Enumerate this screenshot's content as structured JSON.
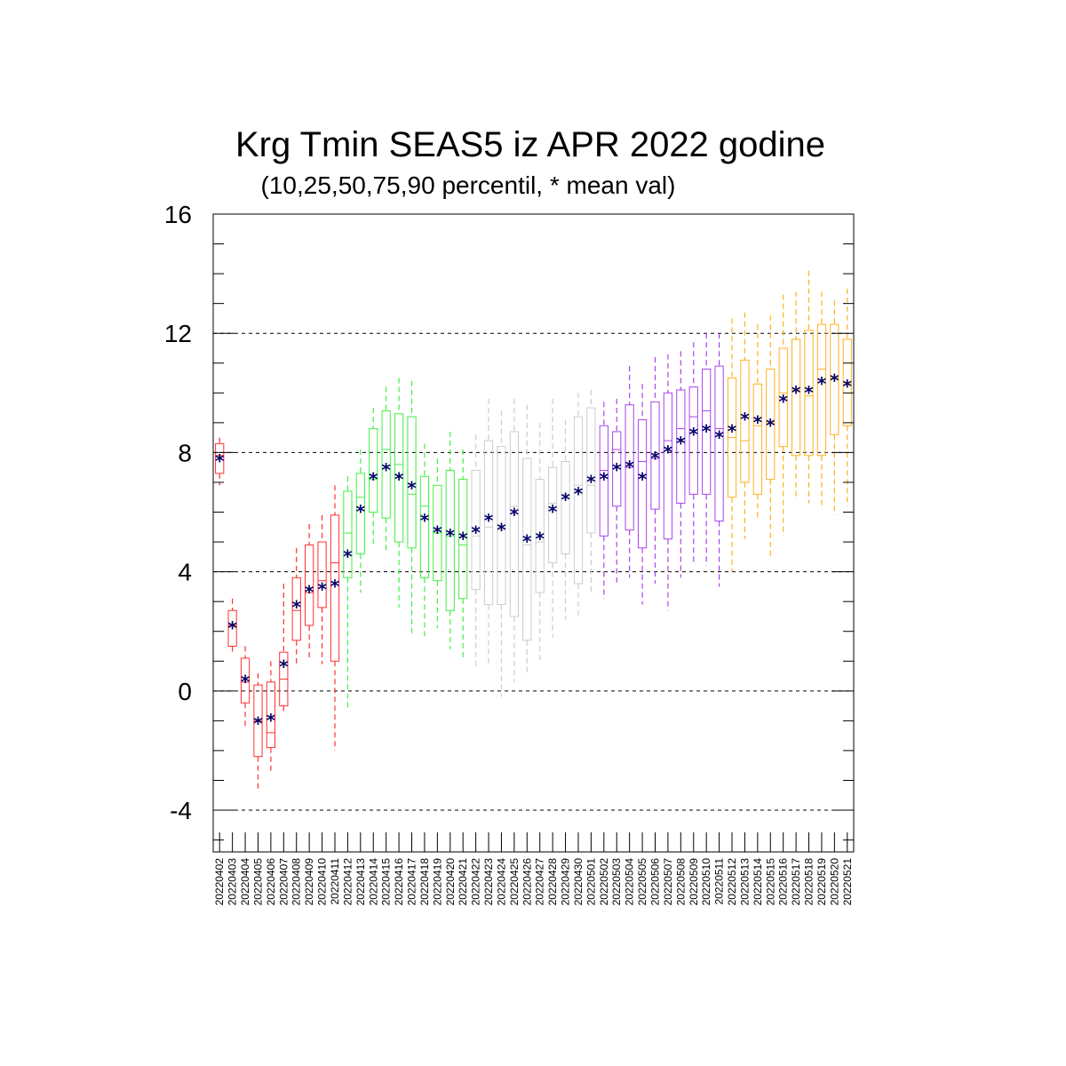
{
  "chart_data": {
    "type": "box",
    "title": "Krg Tmin SEAS5 iz APR 2022 godine",
    "subtitle": "(10,25,50,75,90 percentil, * mean val)",
    "xlabel": "",
    "ylabel": "",
    "ylim": [
      -5.4,
      16
    ],
    "yticks": [
      "16",
      "12",
      "8",
      "4",
      "0",
      "-4"
    ],
    "grid": "dashed horizontal at major ticks",
    "marker": "*",
    "marker_color": "#000066",
    "colors": {
      "red": "#ff3030",
      "green": "#44ee44",
      "gray": "#cccccc",
      "purple": "#aa44ee",
      "orange": "#ffb020",
      "axis": "#000000"
    },
    "columns": [
      "date",
      "color",
      "p10",
      "p25",
      "p50",
      "p75",
      "p90",
      "mean"
    ],
    "boxes": [
      [
        "20220402",
        "red",
        6.9,
        7.3,
        7.9,
        8.3,
        8.5,
        7.8
      ],
      [
        "20220403",
        "red",
        1.2,
        1.5,
        2.2,
        2.7,
        3.1,
        2.2
      ],
      [
        "20220404",
        "red",
        -1.2,
        -0.4,
        0.3,
        1.1,
        1.5,
        0.4
      ],
      [
        "20220405",
        "red",
        -3.4,
        -2.2,
        -1.0,
        0.2,
        0.6,
        -1.0
      ],
      [
        "20220406",
        "red",
        -2.7,
        -1.9,
        -1.4,
        0.3,
        1.0,
        -0.9
      ],
      [
        "20220407",
        "red",
        -0.7,
        -0.5,
        0.4,
        1.3,
        3.6,
        0.9
      ],
      [
        "20220408",
        "red",
        0.8,
        1.7,
        2.7,
        3.8,
        4.8,
        2.9
      ],
      [
        "20220409",
        "red",
        1.1,
        2.2,
        3.3,
        4.9,
        5.6,
        3.4
      ],
      [
        "20220410",
        "red",
        0.9,
        2.8,
        3.7,
        5.0,
        5.9,
        3.5
      ],
      [
        "20220411",
        "red",
        -2.0,
        1.0,
        4.3,
        5.9,
        6.9,
        3.6
      ],
      [
        "20220412",
        "green",
        -0.6,
        3.8,
        5.3,
        6.7,
        7.2,
        4.6
      ],
      [
        "20220413",
        "green",
        3.3,
        4.6,
        6.5,
        7.3,
        8.1,
        6.1
      ],
      [
        "20220414",
        "green",
        4.9,
        6.0,
        7.1,
        8.8,
        9.5,
        7.2
      ],
      [
        "20220415",
        "green",
        4.6,
        5.8,
        8.1,
        9.4,
        10.2,
        7.5
      ],
      [
        "20220416",
        "green",
        2.8,
        5.0,
        7.6,
        9.3,
        10.5,
        7.2
      ],
      [
        "20220417",
        "green",
        1.9,
        4.8,
        6.6,
        9.2,
        10.4,
        6.9
      ],
      [
        "20220418",
        "green",
        1.8,
        3.8,
        6.2,
        7.2,
        8.3,
        5.8
      ],
      [
        "20220419",
        "green",
        2.1,
        3.7,
        5.3,
        6.9,
        7.8,
        5.4
      ],
      [
        "20220420",
        "green",
        1.4,
        2.7,
        5.2,
        7.4,
        8.7,
        5.3
      ],
      [
        "20220421",
        "green",
        1.1,
        3.1,
        4.9,
        7.1,
        8.1,
        5.2
      ],
      [
        "20220422",
        "gray",
        0.8,
        3.4,
        5.2,
        7.4,
        8.6,
        5.4
      ],
      [
        "20220423",
        "gray",
        0.8,
        2.9,
        5.5,
        8.4,
        9.8,
        5.8
      ],
      [
        "20220424",
        "gray",
        -0.2,
        2.9,
        5.4,
        8.2,
        9.4,
        5.5
      ],
      [
        "20220425",
        "gray",
        0.3,
        2.5,
        6.2,
        8.7,
        9.8,
        6.0
      ],
      [
        "20220426",
        "gray",
        0.5,
        1.7,
        4.9,
        7.8,
        9.6,
        5.1
      ],
      [
        "20220427",
        "gray",
        1.0,
        3.3,
        5.0,
        7.1,
        9.0,
        5.2
      ],
      [
        "20220428",
        "gray",
        1.8,
        4.3,
        6.3,
        7.5,
        9.8,
        6.1
      ],
      [
        "20220429",
        "gray",
        2.4,
        4.6,
        6.6,
        7.7,
        9.1,
        6.5
      ],
      [
        "20220430",
        "gray",
        2.5,
        3.6,
        6.9,
        9.2,
        10.0,
        6.7
      ],
      [
        "20220501",
        "gray",
        3.2,
        5.3,
        6.9,
        9.5,
        10.1,
        7.1
      ],
      [
        "20220502",
        "purple",
        3.1,
        5.2,
        7.4,
        8.9,
        9.7,
        7.2
      ],
      [
        "20220503",
        "purple",
        3.6,
        6.2,
        8.1,
        8.7,
        9.8,
        7.5
      ],
      [
        "20220504",
        "purple",
        3.8,
        5.4,
        7.5,
        9.6,
        10.9,
        7.6
      ],
      [
        "20220505",
        "purple",
        2.9,
        4.8,
        7.7,
        9.1,
        10.3,
        7.2
      ],
      [
        "20220506",
        "purple",
        3.6,
        6.1,
        7.8,
        9.7,
        11.2,
        7.9
      ],
      [
        "20220507",
        "purple",
        2.7,
        5.1,
        8.4,
        10.0,
        11.3,
        8.1
      ],
      [
        "20220508",
        "purple",
        3.8,
        6.3,
        8.8,
        10.1,
        11.4,
        8.4
      ],
      [
        "20220509",
        "purple",
        4.3,
        6.6,
        9.2,
        10.2,
        11.7,
        8.7
      ],
      [
        "20220510",
        "purple",
        4.2,
        6.6,
        9.4,
        10.8,
        12.0,
        8.8
      ],
      [
        "20220511",
        "purple",
        3.5,
        5.7,
        8.8,
        10.9,
        12.0,
        8.6
      ],
      [
        "20220512",
        "orange",
        4.0,
        6.5,
        8.5,
        10.5,
        12.5,
        8.8
      ],
      [
        "20220513",
        "orange",
        5.1,
        7.0,
        8.4,
        11.1,
        12.7,
        9.2
      ],
      [
        "20220514",
        "orange",
        5.7,
        6.6,
        8.9,
        10.3,
        12.3,
        9.1
      ],
      [
        "20220515",
        "orange",
        4.5,
        7.1,
        9.0,
        10.8,
        12.6,
        9.0
      ],
      [
        "20220516",
        "orange",
        5.2,
        8.2,
        10.0,
        11.5,
        13.3,
        9.8
      ],
      [
        "20220517",
        "orange",
        6.5,
        7.9,
        10.1,
        11.8,
        13.4,
        10.1
      ],
      [
        "20220518",
        "orange",
        6.3,
        7.9,
        9.9,
        12.1,
        14.1,
        10.1
      ],
      [
        "20220519",
        "orange",
        6.1,
        7.9,
        10.8,
        12.3,
        13.4,
        10.4
      ],
      [
        "20220520",
        "orange",
        5.9,
        8.6,
        10.5,
        12.3,
        13.1,
        10.5
      ],
      [
        "20220521",
        "orange",
        6.2,
        8.9,
        10.3,
        11.8,
        13.5,
        10.3
      ]
    ]
  }
}
